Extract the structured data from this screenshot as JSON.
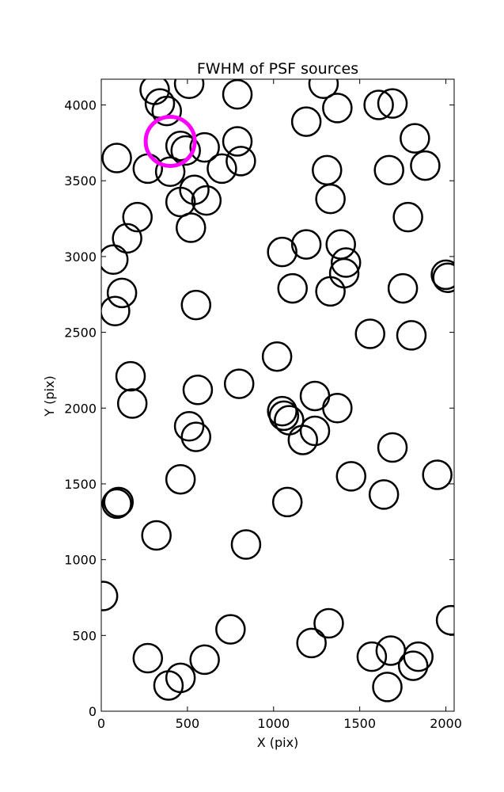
{
  "chart_data": {
    "type": "scatter",
    "title": "FWHM of PSF sources",
    "xlabel": "X (pix)",
    "ylabel": "Y (pix)",
    "xlim": [
      0,
      2048
    ],
    "ylim": [
      0,
      4170
    ],
    "x_ticks": [
      0,
      500,
      1000,
      1500,
      2000
    ],
    "y_ticks": [
      0,
      500,
      1000,
      1500,
      2000,
      2500,
      3000,
      3500,
      4000
    ],
    "x_tick_labels": [
      "0",
      "500",
      "1000",
      "1500",
      "2000"
    ],
    "y_tick_labels": [
      "0",
      "500",
      "1000",
      "1500",
      "2000",
      "2500",
      "3000",
      "3500",
      "4000"
    ],
    "grid": false,
    "marker_color": "#000000",
    "highlight_color": "#ff00ff",
    "series": [
      {
        "marker": "open-circle",
        "x": [
          310,
          340,
          380,
          510,
          790,
          1290,
          1370,
          1610,
          1690,
          1190,
          90,
          270,
          400,
          460,
          490,
          600,
          700,
          790,
          810,
          1820,
          1880,
          1670,
          1310,
          1330,
          540,
          460,
          610,
          210,
          150,
          520,
          70,
          1780,
          1390,
          1420,
          1050,
          1190,
          1410,
          2000,
          2010,
          120,
          1110,
          1330,
          1750,
          80,
          550,
          1800,
          1020,
          1560,
          170,
          800,
          180,
          560,
          1240,
          1050,
          1060,
          1090,
          1370,
          510,
          1240,
          550,
          1170,
          1690,
          1450,
          1640,
          1950,
          460,
          90,
          100,
          1080,
          840,
          320,
          10,
          2030,
          1320,
          750,
          1220,
          1570,
          1680,
          1840,
          1810,
          270,
          600,
          460,
          390,
          1660
        ],
        "y": [
          4100,
          4010,
          3960,
          4140,
          4070,
          4140,
          3980,
          4000,
          4010,
          3890,
          3650,
          3580,
          3560,
          3730,
          3700,
          3720,
          3580,
          3760,
          3630,
          3780,
          3600,
          3570,
          3570,
          3380,
          3440,
          3360,
          3370,
          3260,
          3120,
          3190,
          2980,
          3260,
          3080,
          2960,
          3030,
          3080,
          2890,
          2880,
          2860,
          2760,
          2790,
          2770,
          2790,
          2640,
          2680,
          2480,
          2340,
          2490,
          2210,
          2160,
          2030,
          2120,
          2080,
          1980,
          1950,
          1920,
          2000,
          1880,
          1850,
          1810,
          1790,
          1740,
          1550,
          1430,
          1560,
          1530,
          1370,
          1380,
          1380,
          1100,
          1160,
          760,
          600,
          580,
          540,
          450,
          360,
          400,
          360,
          300,
          350,
          340,
          220,
          170,
          160
        ]
      }
    ],
    "highlight": {
      "x": 400,
      "y": 3760
    }
  }
}
